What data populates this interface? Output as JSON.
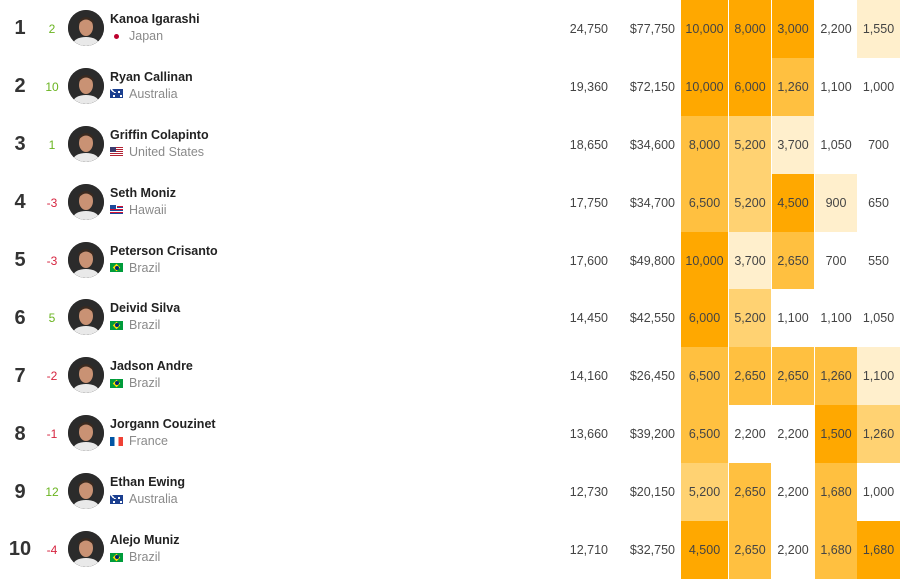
{
  "colors": {
    "rank_up": "#6ab420",
    "rank_down": "#d6243f",
    "heat": [
      "#ffffff",
      "#ffefcc",
      "#ffd272",
      "#ffc040",
      "#ffa800"
    ]
  },
  "rows": [
    {
      "rank": "1",
      "change": "2",
      "change_dir": "up",
      "name": "Kanoa Igarashi",
      "country": "Japan",
      "flag_icon": "japan-flag-icon",
      "points": "24,750",
      "prize": "$77,750",
      "results": [
        {
          "value": "10,000",
          "heat": 4
        },
        {
          "value": "8,000",
          "heat": 4
        },
        {
          "value": "3,000",
          "heat": 4
        },
        {
          "value": "2,200",
          "heat": 0
        },
        {
          "value": "1,550",
          "heat": 1
        }
      ]
    },
    {
      "rank": "2",
      "change": "10",
      "change_dir": "up",
      "name": "Ryan Callinan",
      "country": "Australia",
      "flag_icon": "australia-flag-icon",
      "points": "19,360",
      "prize": "$72,150",
      "results": [
        {
          "value": "10,000",
          "heat": 4
        },
        {
          "value": "6,000",
          "heat": 4
        },
        {
          "value": "1,260",
          "heat": 3
        },
        {
          "value": "1,100",
          "heat": 0
        },
        {
          "value": "1,000",
          "heat": 0
        }
      ]
    },
    {
      "rank": "3",
      "change": "1",
      "change_dir": "up",
      "name": "Griffin Colapinto",
      "country": "United States",
      "flag_icon": "usa-flag-icon",
      "points": "18,650",
      "prize": "$34,600",
      "results": [
        {
          "value": "8,000",
          "heat": 3
        },
        {
          "value": "5,200",
          "heat": 2
        },
        {
          "value": "3,700",
          "heat": 1
        },
        {
          "value": "1,050",
          "heat": 0
        },
        {
          "value": "700",
          "heat": 0
        }
      ]
    },
    {
      "rank": "4",
      "change": "-3",
      "change_dir": "down",
      "name": "Seth Moniz",
      "country": "Hawaii",
      "flag_icon": "hawaii-flag-icon",
      "points": "17,750",
      "prize": "$34,700",
      "results": [
        {
          "value": "6,500",
          "heat": 3
        },
        {
          "value": "5,200",
          "heat": 2
        },
        {
          "value": "4,500",
          "heat": 4
        },
        {
          "value": "900",
          "heat": 1
        },
        {
          "value": "650",
          "heat": 0
        }
      ]
    },
    {
      "rank": "5",
      "change": "-3",
      "change_dir": "down",
      "name": "Peterson Crisanto",
      "country": "Brazil",
      "flag_icon": "brazil-flag-icon",
      "points": "17,600",
      "prize": "$49,800",
      "results": [
        {
          "value": "10,000",
          "heat": 4
        },
        {
          "value": "3,700",
          "heat": 1
        },
        {
          "value": "2,650",
          "heat": 3
        },
        {
          "value": "700",
          "heat": 0
        },
        {
          "value": "550",
          "heat": 0
        }
      ]
    },
    {
      "rank": "6",
      "change": "5",
      "change_dir": "up",
      "name": "Deivid Silva",
      "country": "Brazil",
      "flag_icon": "brazil-flag-icon",
      "points": "14,450",
      "prize": "$42,550",
      "results": [
        {
          "value": "6,000",
          "heat": 4
        },
        {
          "value": "5,200",
          "heat": 2
        },
        {
          "value": "1,100",
          "heat": 0
        },
        {
          "value": "1,100",
          "heat": 0
        },
        {
          "value": "1,050",
          "heat": 0
        }
      ]
    },
    {
      "rank": "7",
      "change": "-2",
      "change_dir": "down",
      "name": "Jadson Andre",
      "country": "Brazil",
      "flag_icon": "brazil-flag-icon",
      "points": "14,160",
      "prize": "$26,450",
      "results": [
        {
          "value": "6,500",
          "heat": 3
        },
        {
          "value": "2,650",
          "heat": 3
        },
        {
          "value": "2,650",
          "heat": 3
        },
        {
          "value": "1,260",
          "heat": 3
        },
        {
          "value": "1,100",
          "heat": 1
        }
      ]
    },
    {
      "rank": "8",
      "change": "-1",
      "change_dir": "down",
      "name": "Jorgann Couzinet",
      "country": "France",
      "flag_icon": "france-flag-icon",
      "points": "13,660",
      "prize": "$39,200",
      "results": [
        {
          "value": "6,500",
          "heat": 3
        },
        {
          "value": "2,200",
          "heat": 0
        },
        {
          "value": "2,200",
          "heat": 0
        },
        {
          "value": "1,500",
          "heat": 4
        },
        {
          "value": "1,260",
          "heat": 2
        }
      ]
    },
    {
      "rank": "9",
      "change": "12",
      "change_dir": "up",
      "name": "Ethan Ewing",
      "country": "Australia",
      "flag_icon": "australia-flag-icon",
      "points": "12,730",
      "prize": "$20,150",
      "results": [
        {
          "value": "5,200",
          "heat": 2
        },
        {
          "value": "2,650",
          "heat": 3
        },
        {
          "value": "2,200",
          "heat": 0
        },
        {
          "value": "1,680",
          "heat": 3
        },
        {
          "value": "1,000",
          "heat": 0
        }
      ]
    },
    {
      "rank": "10",
      "change": "-4",
      "change_dir": "down",
      "name": "Alejo Muniz",
      "country": "Brazil",
      "flag_icon": "brazil-flag-icon",
      "points": "12,710",
      "prize": "$32,750",
      "results": [
        {
          "value": "4,500",
          "heat": 4
        },
        {
          "value": "2,650",
          "heat": 3
        },
        {
          "value": "2,200",
          "heat": 0
        },
        {
          "value": "1,680",
          "heat": 3
        },
        {
          "value": "1,680",
          "heat": 4
        }
      ]
    }
  ]
}
